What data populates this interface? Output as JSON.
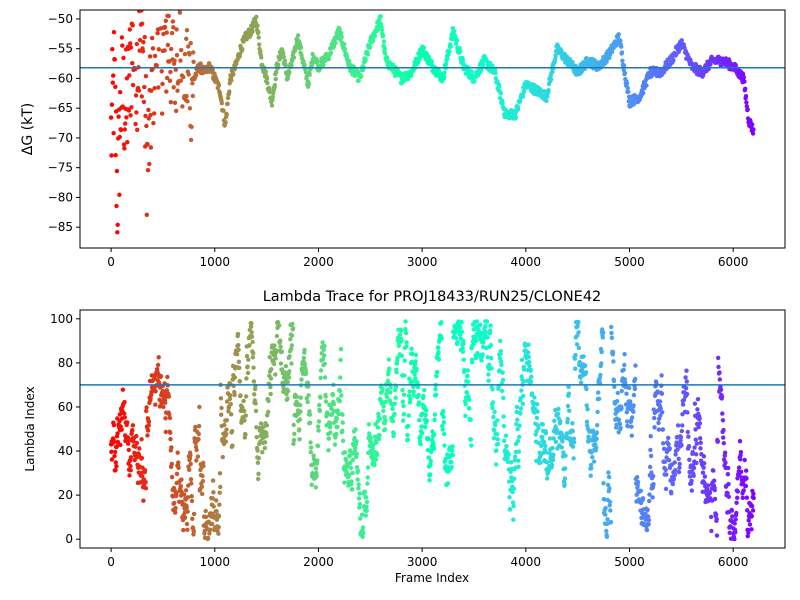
{
  "chart_data": [
    {
      "type": "scatter",
      "title": "",
      "xlabel": "",
      "ylabel": "ΔG (kT)",
      "xlim": [
        -300,
        6500
      ],
      "ylim": [
        -88.5,
        -48.5
      ],
      "xticks": [
        0,
        1000,
        2000,
        3000,
        4000,
        5000,
        6000
      ],
      "yticks": [
        -85,
        -80,
        -75,
        -70,
        -65,
        -60,
        -55,
        -50
      ],
      "xtick_labels": [
        "0",
        "1000",
        "2000",
        "3000",
        "4000",
        "5000",
        "6000"
      ],
      "ytick_labels": [
        "−85",
        "−80",
        "−75",
        "−70",
        "−65",
        "−60",
        "−55",
        "−50"
      ],
      "hline": -58.2,
      "colormap": "rainbow (reversed: red at frame 0, violet at last frame)",
      "series_trace_keypoints": {
        "x": [
          0,
          30,
          60,
          100,
          150,
          200,
          250,
          300,
          350,
          400,
          450,
          500,
          550,
          600,
          650,
          700,
          750,
          800,
          850,
          900,
          950,
          1000,
          1050,
          1100,
          1150,
          1200,
          1250,
          1300,
          1350,
          1400,
          1450,
          1500,
          1550,
          1600,
          1650,
          1700,
          1750,
          1800,
          1850,
          1900,
          1950,
          2000,
          2100,
          2200,
          2300,
          2400,
          2500,
          2550,
          2600,
          2650,
          2700,
          2800,
          2900,
          3000,
          3100,
          3200,
          3300,
          3400,
          3500,
          3600,
          3700,
          3800,
          3900,
          4000,
          4100,
          4200,
          4300,
          4400,
          4500,
          4600,
          4700,
          4800,
          4900,
          5000,
          5100,
          5200,
          5300,
          5400,
          5500,
          5600,
          5700,
          5800,
          5900,
          6000,
          6050,
          6100,
          6150,
          6200
        ],
        "y": [
          -70,
          -60,
          -80,
          -62,
          -66,
          -55,
          -58,
          -52,
          -75,
          -60,
          -50,
          -56,
          -53,
          -58,
          -52,
          -57,
          -60,
          -60,
          -58,
          -59,
          -58,
          -60,
          -62,
          -68,
          -60,
          -58,
          -55,
          -53,
          -52,
          -50,
          -57,
          -60,
          -64,
          -58,
          -55,
          -60,
          -57,
          -53,
          -57,
          -61,
          -56,
          -58,
          -56,
          -52,
          -58,
          -60,
          -54,
          -52,
          -50,
          -57,
          -58,
          -60,
          -59,
          -55,
          -58,
          -60,
          -52,
          -58,
          -60,
          -57,
          -59,
          -66,
          -66,
          -61,
          -62,
          -63,
          -55,
          -57,
          -59,
          -57,
          -58,
          -56,
          -53,
          -64,
          -63,
          -59,
          -59,
          -57,
          -54,
          -58,
          -59,
          -57,
          -57,
          -58,
          -59,
          -60,
          -67,
          -69
        ]
      }
    },
    {
      "type": "scatter",
      "title": "Lambda Trace for PROJ18433/RUN25/CLONE42",
      "xlabel": "Frame Index",
      "ylabel": "Lambda Index",
      "xlim": [
        -300,
        6500
      ],
      "ylim": [
        -4,
        104
      ],
      "xticks": [
        0,
        1000,
        2000,
        3000,
        4000,
        5000,
        6000
      ],
      "yticks": [
        0,
        20,
        40,
        60,
        80,
        100
      ],
      "xtick_labels": [
        "0",
        "1000",
        "2000",
        "3000",
        "4000",
        "5000",
        "6000"
      ],
      "ytick_labels": [
        "0",
        "20",
        "40",
        "60",
        "80",
        "100"
      ],
      "hline": 70,
      "colormap": "rainbow (reversed: red at frame 0, violet at last frame)",
      "n_frames": 6200,
      "lambda_range": [
        0,
        99
      ]
    }
  ]
}
